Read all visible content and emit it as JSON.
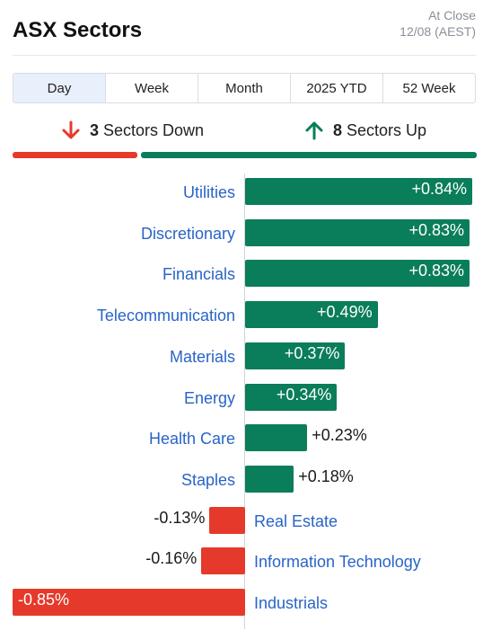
{
  "header": {
    "title": "ASX Sectors",
    "asof_line1": "At Close",
    "asof_line2": "12/08 (AEST)"
  },
  "tabs": [
    {
      "label": "Day",
      "active": true
    },
    {
      "label": "Week",
      "active": false
    },
    {
      "label": "Month",
      "active": false
    },
    {
      "label": "2025 YTD",
      "active": false
    },
    {
      "label": "52 Week",
      "active": false
    }
  ],
  "summary": {
    "down_count": "3",
    "down_label": "Sectors Down",
    "up_count": "8",
    "up_label": "Sectors Up"
  },
  "colors": {
    "up": "#0a7d5a",
    "down": "#e53a2b",
    "category_text": "#2864c8"
  },
  "chart_data": {
    "type": "bar",
    "orientation": "horizontal",
    "unit": "%",
    "categories": [
      "Utilities",
      "Discretionary",
      "Financials",
      "Telecommunication",
      "Materials",
      "Energy",
      "Health Care",
      "Staples",
      "Real Estate",
      "Information Technology",
      "Industrials"
    ],
    "values": [
      0.84,
      0.83,
      0.83,
      0.49,
      0.37,
      0.34,
      0.23,
      0.18,
      -0.13,
      -0.16,
      -0.85
    ],
    "labels": [
      "+0.84%",
      "+0.83%",
      "+0.83%",
      "+0.49%",
      "+0.37%",
      "+0.34%",
      "+0.23%",
      "+0.18%",
      "-0.13%",
      "-0.16%",
      "-0.85%"
    ],
    "xlim": [
      -0.85,
      0.84
    ]
  }
}
